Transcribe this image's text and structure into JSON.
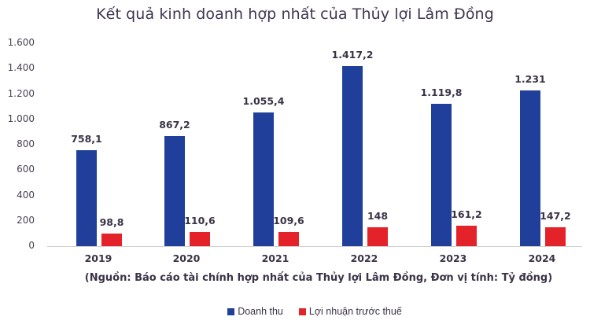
{
  "chart_data": {
    "type": "bar",
    "title": "Kết quả kinh doanh hợp nhất của Thủy lợi Lâm Đồng",
    "subtitle": "(Nguồn: Báo cáo tài chính hợp nhất của Thủy lợi Lâm Đồng, Đơn vị tính: Tỷ đồng)",
    "xlabel": "",
    "ylabel": "",
    "ylim": [
      0,
      1600
    ],
    "yticks": [
      "0",
      "200",
      "400",
      "600",
      "800",
      "1.000",
      "1.200",
      "1.400",
      "1.600"
    ],
    "grid": false,
    "legend_position": "bottom",
    "categories": [
      "2019",
      "2020",
      "2021",
      "2022",
      "2023",
      "2024"
    ],
    "series": [
      {
        "name": "Doanh thu",
        "color": "#1f3f9a",
        "values": [
          758.1,
          867.2,
          1055.4,
          1417.2,
          1119.8,
          1231
        ],
        "labels": [
          "758,1",
          "867,2",
          "1.055,4",
          "1.417,2",
          "1.119,8",
          "1.231"
        ]
      },
      {
        "name": "Lợi nhuận trước thuế",
        "color": "#e3222a",
        "values": [
          98.8,
          110.6,
          109.6,
          148,
          161.2,
          147.2
        ],
        "labels": [
          "98,8",
          "110,6",
          "109,6",
          "148",
          "161,2",
          "147,2"
        ]
      }
    ]
  }
}
